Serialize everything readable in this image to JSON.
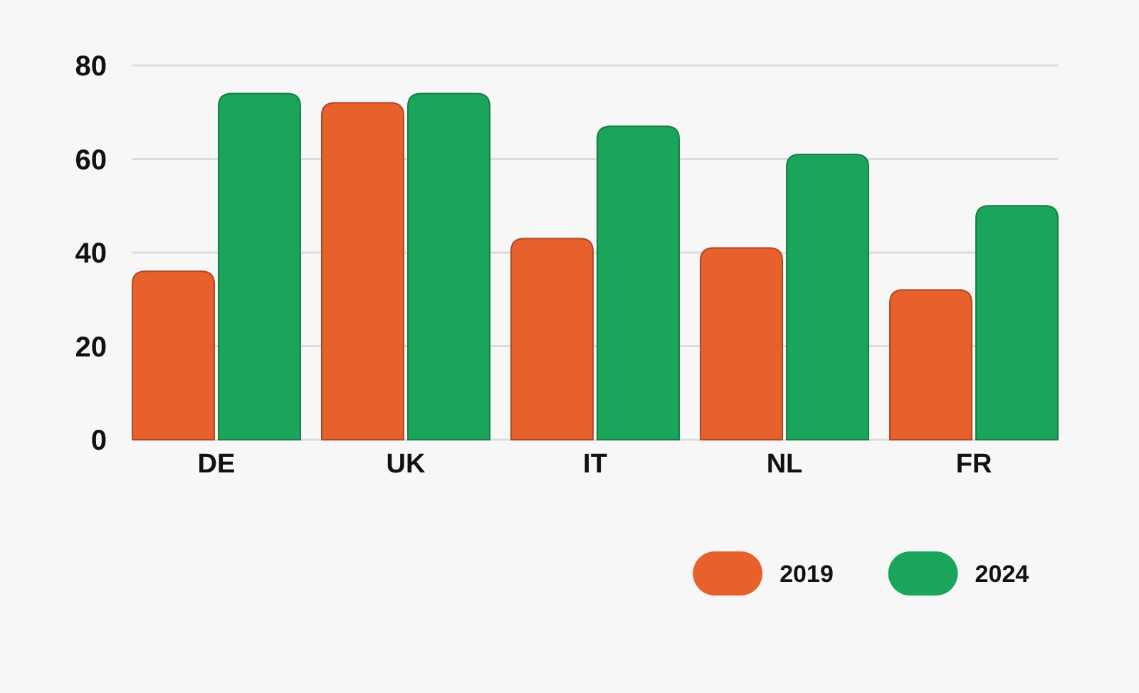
{
  "chart_data": {
    "type": "bar",
    "categories": [
      "DE",
      "UK",
      "IT",
      "NL",
      "FR"
    ],
    "series": [
      {
        "name": "2019",
        "color": "#e8602c",
        "values": [
          36,
          72,
          43,
          41,
          32
        ]
      },
      {
        "name": "2024",
        "color": "#1aa55a",
        "values": [
          74,
          74,
          67,
          61,
          50
        ]
      }
    ],
    "ylim": [
      0,
      80
    ],
    "yticks": [
      0,
      20,
      40,
      60,
      80
    ],
    "grid": "y",
    "legend": "bottom right"
  }
}
